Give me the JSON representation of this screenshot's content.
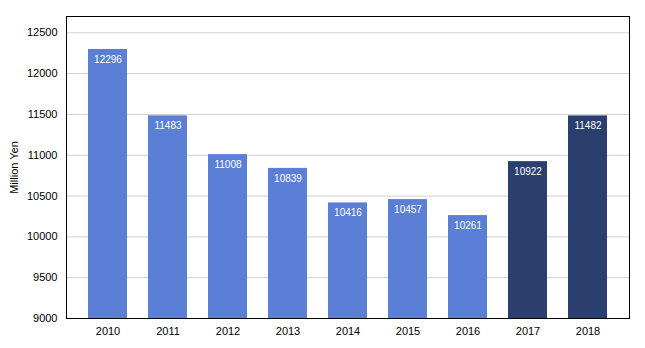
{
  "chart_data": {
    "type": "bar",
    "categories": [
      "2010",
      "2011",
      "2012",
      "2013",
      "2014",
      "2015",
      "2016",
      "2017",
      "2018"
    ],
    "values": [
      12296,
      11483,
      11008,
      10839,
      10416,
      10457,
      10261,
      10922,
      11482
    ],
    "colors": [
      "#5b7fd4",
      "#5b7fd4",
      "#5b7fd4",
      "#5b7fd4",
      "#5b7fd4",
      "#5b7fd4",
      "#5b7fd4",
      "#2b3f6e",
      "#2b3f6e"
    ],
    "ylabel": "Million Yen",
    "ylim": [
      9000,
      12700
    ],
    "yticks": [
      9000,
      9500,
      10000,
      10500,
      11000,
      11500,
      12000,
      12500
    ],
    "grid": true,
    "data_labels": true
  }
}
